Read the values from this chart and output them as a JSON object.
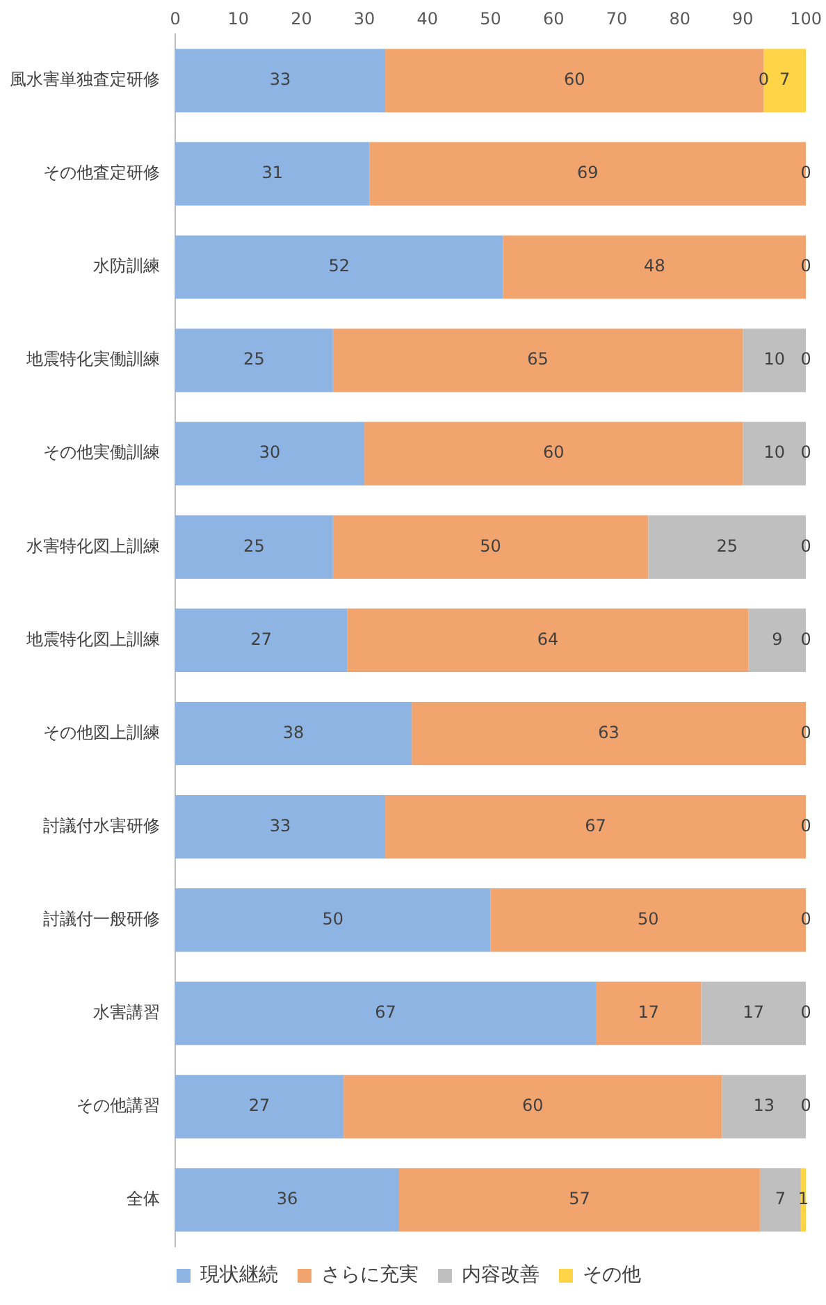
{
  "chart_data": {
    "type": "bar",
    "orientation": "horizontal",
    "stacked": true,
    "legend": "bottom",
    "categories": [
      "風水害単独査定研修",
      "その他査定研修",
      "水防訓練",
      "地震特化実働訓練",
      "その他実働訓練",
      "水害特化図上訓練",
      "地震特化図上訓練",
      "その他図上訓練",
      "討議付水害研修",
      "討議付一般研修",
      "水害講習",
      "その他講習",
      "全体"
    ],
    "xlim": [
      0,
      100
    ],
    "xticks": [
      0,
      10,
      20,
      30,
      40,
      50,
      60,
      70,
      80,
      90,
      100
    ],
    "series": [
      {
        "name": "現状継続",
        "color": "#8db4e2",
        "values": [
          33.3,
          30.8,
          52,
          25,
          30,
          25,
          27.3,
          37.5,
          33.3,
          50,
          66.7,
          26.7,
          35.5
        ],
        "value_labels": [
          "33",
          "31",
          "52",
          "25",
          "30",
          "25",
          "27",
          "38",
          "33",
          "50",
          "67",
          "27",
          "36"
        ]
      },
      {
        "name": "さらに充実",
        "color": "#f2a46f",
        "values": [
          60,
          69.2,
          48,
          65,
          60,
          50,
          63.6,
          62.5,
          66.7,
          50,
          16.7,
          60,
          57.2
        ],
        "value_labels": [
          "60",
          "69",
          "48",
          "65",
          "60",
          "50",
          "64",
          "63",
          "67",
          "50",
          "17",
          "60",
          "57"
        ]
      },
      {
        "name": "内容改善",
        "color": "#bfbfbf",
        "values": [
          0,
          0,
          0,
          10,
          10,
          25,
          9.1,
          0,
          0,
          0,
          16.6,
          13.3,
          6.5
        ],
        "value_labels": [
          "0",
          null,
          null,
          "10",
          "10",
          "25",
          "9",
          null,
          null,
          null,
          "17",
          "13",
          "7"
        ]
      },
      {
        "name": "その他",
        "color": "#ffd447",
        "values": [
          6.7,
          0,
          0,
          0,
          0,
          0,
          0,
          0,
          0,
          0,
          0,
          0,
          0.8
        ],
        "value_labels": [
          "7",
          "0",
          "0",
          "0",
          "0",
          "0",
          "0",
          "0",
          "0",
          "0",
          "0",
          "0",
          "1"
        ]
      }
    ]
  }
}
